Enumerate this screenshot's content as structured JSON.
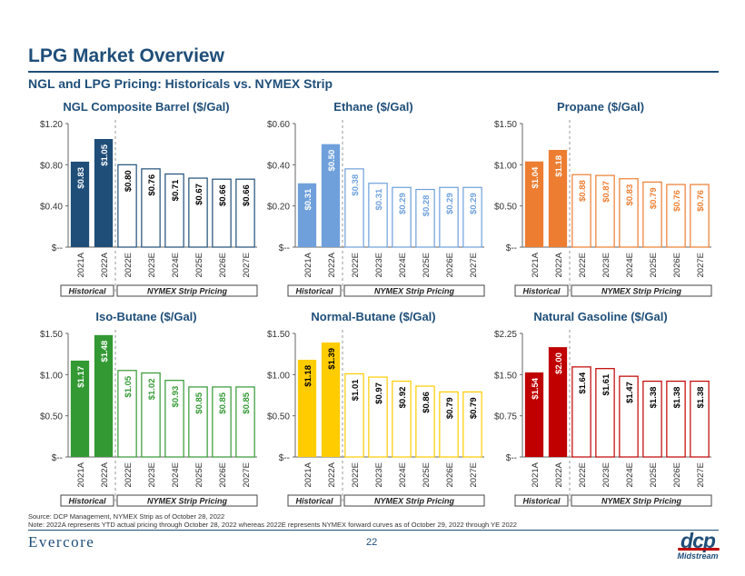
{
  "page": {
    "title": "LPG Market Overview",
    "subtitle": "NGL and LPG Pricing: Historicals vs. NYMEX Strip",
    "source": "Source: DCP Management, NYMEX Strip as of October 28, 2022",
    "note": "Note: 2022A represents YTD actual pricing through October 28, 2022 whereas 2022E represents NYMEX forward curves as of October 29, 2022 through YE 2022",
    "page_number": "22",
    "footer_logo": "Evercore",
    "company_logo": "dcp",
    "company_logo_sub": "Midstream",
    "legend_historical": "Historical",
    "legend_strip": "NYMEX Strip Pricing",
    "colors": {
      "title": "#1f4e79",
      "ngl_dark": "#1f4e79",
      "ethane_light": "#6fa0dc",
      "propane_light": "#ed7d31",
      "isobutane_light": "#339933",
      "normalbutane_light": "#ffcc00",
      "natgas_light": "#c00000"
    }
  },
  "chart_data": [
    {
      "type": "bar",
      "title": "NGL Composite Barrel ($/Gal)",
      "categories": [
        "2021A",
        "2022A",
        "2022E",
        "2023E",
        "2024E",
        "2025E",
        "2026E",
        "2027E"
      ],
      "values": [
        0.83,
        1.05,
        0.8,
        0.76,
        0.71,
        0.67,
        0.66,
        0.66
      ],
      "labels": [
        "$0.83",
        "$1.05",
        "$0.80",
        "$0.76",
        "$0.71",
        "$0.67",
        "$0.66",
        "$0.66"
      ],
      "ylim": [
        0,
        1.2
      ],
      "yticks": [
        0,
        0.4,
        0.8,
        1.2
      ],
      "ytick_labels": [
        "$--",
        "$0.40",
        "$0.80",
        "$1.20"
      ],
      "historical_count": 2,
      "color": "#1f4e79",
      "label_color_strip": "#000000"
    },
    {
      "type": "bar",
      "title": "Ethane ($/Gal)",
      "categories": [
        "2021A",
        "2022A",
        "2022E",
        "2023E",
        "2024E",
        "2025E",
        "2026E",
        "2027E"
      ],
      "values": [
        0.31,
        0.5,
        0.38,
        0.31,
        0.29,
        0.28,
        0.29,
        0.29
      ],
      "labels": [
        "$0.31",
        "$0.50",
        "$0.38",
        "$0.31",
        "$0.29",
        "$0.28",
        "$0.29",
        "$0.29"
      ],
      "ylim": [
        0,
        0.6
      ],
      "yticks": [
        0,
        0.2,
        0.4,
        0.6
      ],
      "ytick_labels": [
        "$--",
        "$0.20",
        "$0.40",
        "$0.60"
      ],
      "historical_count": 2,
      "color": "#6fa0dc",
      "label_color_strip": "#6fa0dc"
    },
    {
      "type": "bar",
      "title": "Propane ($/Gal)",
      "categories": [
        "2021A",
        "2022A",
        "2022E",
        "2023E",
        "2024E",
        "2025E",
        "2026E",
        "2027E"
      ],
      "values": [
        1.04,
        1.18,
        0.88,
        0.87,
        0.83,
        0.79,
        0.76,
        0.76
      ],
      "labels": [
        "$1.04",
        "$1.18",
        "$0.88",
        "$0.87",
        "$0.83",
        "$0.79",
        "$0.76",
        "$0.76"
      ],
      "ylim": [
        0,
        1.5
      ],
      "yticks": [
        0,
        0.5,
        1.0,
        1.5
      ],
      "ytick_labels": [
        "$--",
        "$0.50",
        "$1.00",
        "$1.50"
      ],
      "historical_count": 2,
      "color": "#ed7d31",
      "label_color_strip": "#ed7d31"
    },
    {
      "type": "bar",
      "title": "Iso-Butane ($/Gal)",
      "categories": [
        "2021A",
        "2022A",
        "2022E",
        "2023E",
        "2024E",
        "2025E",
        "2026E",
        "2027E"
      ],
      "values": [
        1.17,
        1.48,
        1.05,
        1.02,
        0.93,
        0.85,
        0.85,
        0.85
      ],
      "labels": [
        "$1.17",
        "$1.48",
        "$1.05",
        "$1.02",
        "$0.93",
        "$0.85",
        "$0.85",
        "$0.85"
      ],
      "ylim": [
        0,
        1.5
      ],
      "yticks": [
        0,
        0.5,
        1.0,
        1.5
      ],
      "ytick_labels": [
        "$--",
        "$0.50",
        "$1.00",
        "$1.50"
      ],
      "historical_count": 2,
      "color": "#339933",
      "label_color_strip": "#339933"
    },
    {
      "type": "bar",
      "title": "Normal-Butane ($/Gal)",
      "categories": [
        "2021A",
        "2022A",
        "2022E",
        "2023E",
        "2024E",
        "2025E",
        "2026E",
        "2027E"
      ],
      "values": [
        1.18,
        1.39,
        1.01,
        0.97,
        0.92,
        0.86,
        0.79,
        0.79
      ],
      "labels": [
        "$1.18",
        "$1.39",
        "$1.01",
        "$0.97",
        "$0.92",
        "$0.86",
        "$0.79",
        "$0.79"
      ],
      "ylim": [
        0,
        1.5
      ],
      "yticks": [
        0,
        0.5,
        1.0,
        1.5
      ],
      "ytick_labels": [
        "$--",
        "$0.50",
        "$1.00",
        "$1.50"
      ],
      "historical_count": 2,
      "color": "#ffcc00",
      "label_color_hist": "#000000",
      "label_color_strip": "#000000"
    },
    {
      "type": "bar",
      "title": "Natural Gasoline ($/Gal)",
      "categories": [
        "2021A",
        "2022A",
        "2022E",
        "2023E",
        "2024E",
        "2025E",
        "2026E",
        "2027E"
      ],
      "values": [
        1.54,
        2.0,
        1.64,
        1.61,
        1.47,
        1.38,
        1.38,
        1.38
      ],
      "labels": [
        "$1.54",
        "$2.00",
        "$1.64",
        "$1.61",
        "$1.47",
        "$1.38",
        "$1.38",
        "$1.38"
      ],
      "ylim": [
        0,
        2.25
      ],
      "yticks": [
        0,
        0.75,
        1.5,
        2.25
      ],
      "ytick_labels": [
        "$--",
        "$0.75",
        "$1.50",
        "$2.25"
      ],
      "historical_count": 2,
      "color": "#c00000",
      "label_color_strip": "#000000"
    }
  ]
}
